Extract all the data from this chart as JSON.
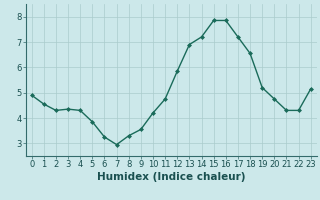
{
  "x": [
    0,
    1,
    2,
    3,
    4,
    5,
    6,
    7,
    8,
    9,
    10,
    11,
    12,
    13,
    14,
    15,
    16,
    17,
    18,
    19,
    20,
    21,
    22,
    23
  ],
  "y": [
    4.9,
    4.55,
    4.3,
    4.35,
    4.3,
    3.85,
    3.25,
    2.95,
    3.3,
    3.55,
    4.2,
    4.75,
    5.85,
    6.9,
    7.2,
    7.85,
    7.85,
    7.2,
    6.55,
    5.2,
    4.75,
    4.3,
    4.3,
    5.15
  ],
  "line_color": "#1a6b5a",
  "marker": "D",
  "marker_size": 2,
  "linewidth": 1.0,
  "bg_color": "#cce8ea",
  "grid_color": "#aacccc",
  "xlabel": "Humidex (Indice chaleur)",
  "xlabel_fontsize": 7.5,
  "xlim": [
    -0.5,
    23.5
  ],
  "ylim": [
    2.5,
    8.5
  ],
  "yticks": [
    3,
    4,
    5,
    6,
    7,
    8
  ],
  "xticks": [
    0,
    1,
    2,
    3,
    4,
    5,
    6,
    7,
    8,
    9,
    10,
    11,
    12,
    13,
    14,
    15,
    16,
    17,
    18,
    19,
    20,
    21,
    22,
    23
  ],
  "tick_fontsize": 6,
  "bottom_bar_color": "#336b6b"
}
